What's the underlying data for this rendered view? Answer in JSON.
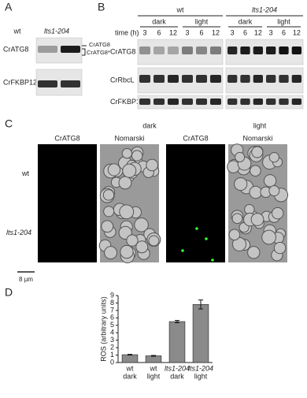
{
  "panels": {
    "A": {
      "label": "A",
      "lanes": [
        "wt",
        "lts1-204"
      ],
      "rows": [
        "CrATG8",
        "CrFKBP12"
      ],
      "band_labels": [
        "CrATG8",
        "CrATG8*"
      ]
    },
    "B": {
      "label": "B",
      "groups": [
        "wt",
        "lts1-204"
      ],
      "conditions": [
        "dark",
        "light",
        "dark",
        "light"
      ],
      "time_label": "time (h)",
      "times": [
        "3",
        "6",
        "12"
      ],
      "rows": [
        "CrATG8",
        "CrRbcL",
        "CrFKBP12"
      ]
    },
    "C": {
      "label": "C",
      "conditions": [
        "dark",
        "light"
      ],
      "columns": [
        "CrATG8",
        "Nomarski"
      ],
      "rows": [
        "wt",
        "lts1-204"
      ],
      "scale": "8 µm"
    },
    "D": {
      "label": "D"
    }
  },
  "chart_data": {
    "type": "bar",
    "ylabel": "ROS (arbitrary units)",
    "categories": [
      [
        "wt",
        "dark"
      ],
      [
        "wt",
        "light"
      ],
      [
        "lts1-204",
        "dark"
      ],
      [
        "lts1-204",
        "light"
      ]
    ],
    "values": [
      1.05,
      0.9,
      5.5,
      7.8
    ],
    "errors": [
      0.05,
      0.05,
      0.15,
      0.6
    ],
    "color": "#8a8a8a",
    "ylim": [
      0,
      9
    ],
    "yticks": [
      0,
      1,
      2,
      3,
      4,
      5,
      6,
      7,
      8,
      9
    ]
  }
}
